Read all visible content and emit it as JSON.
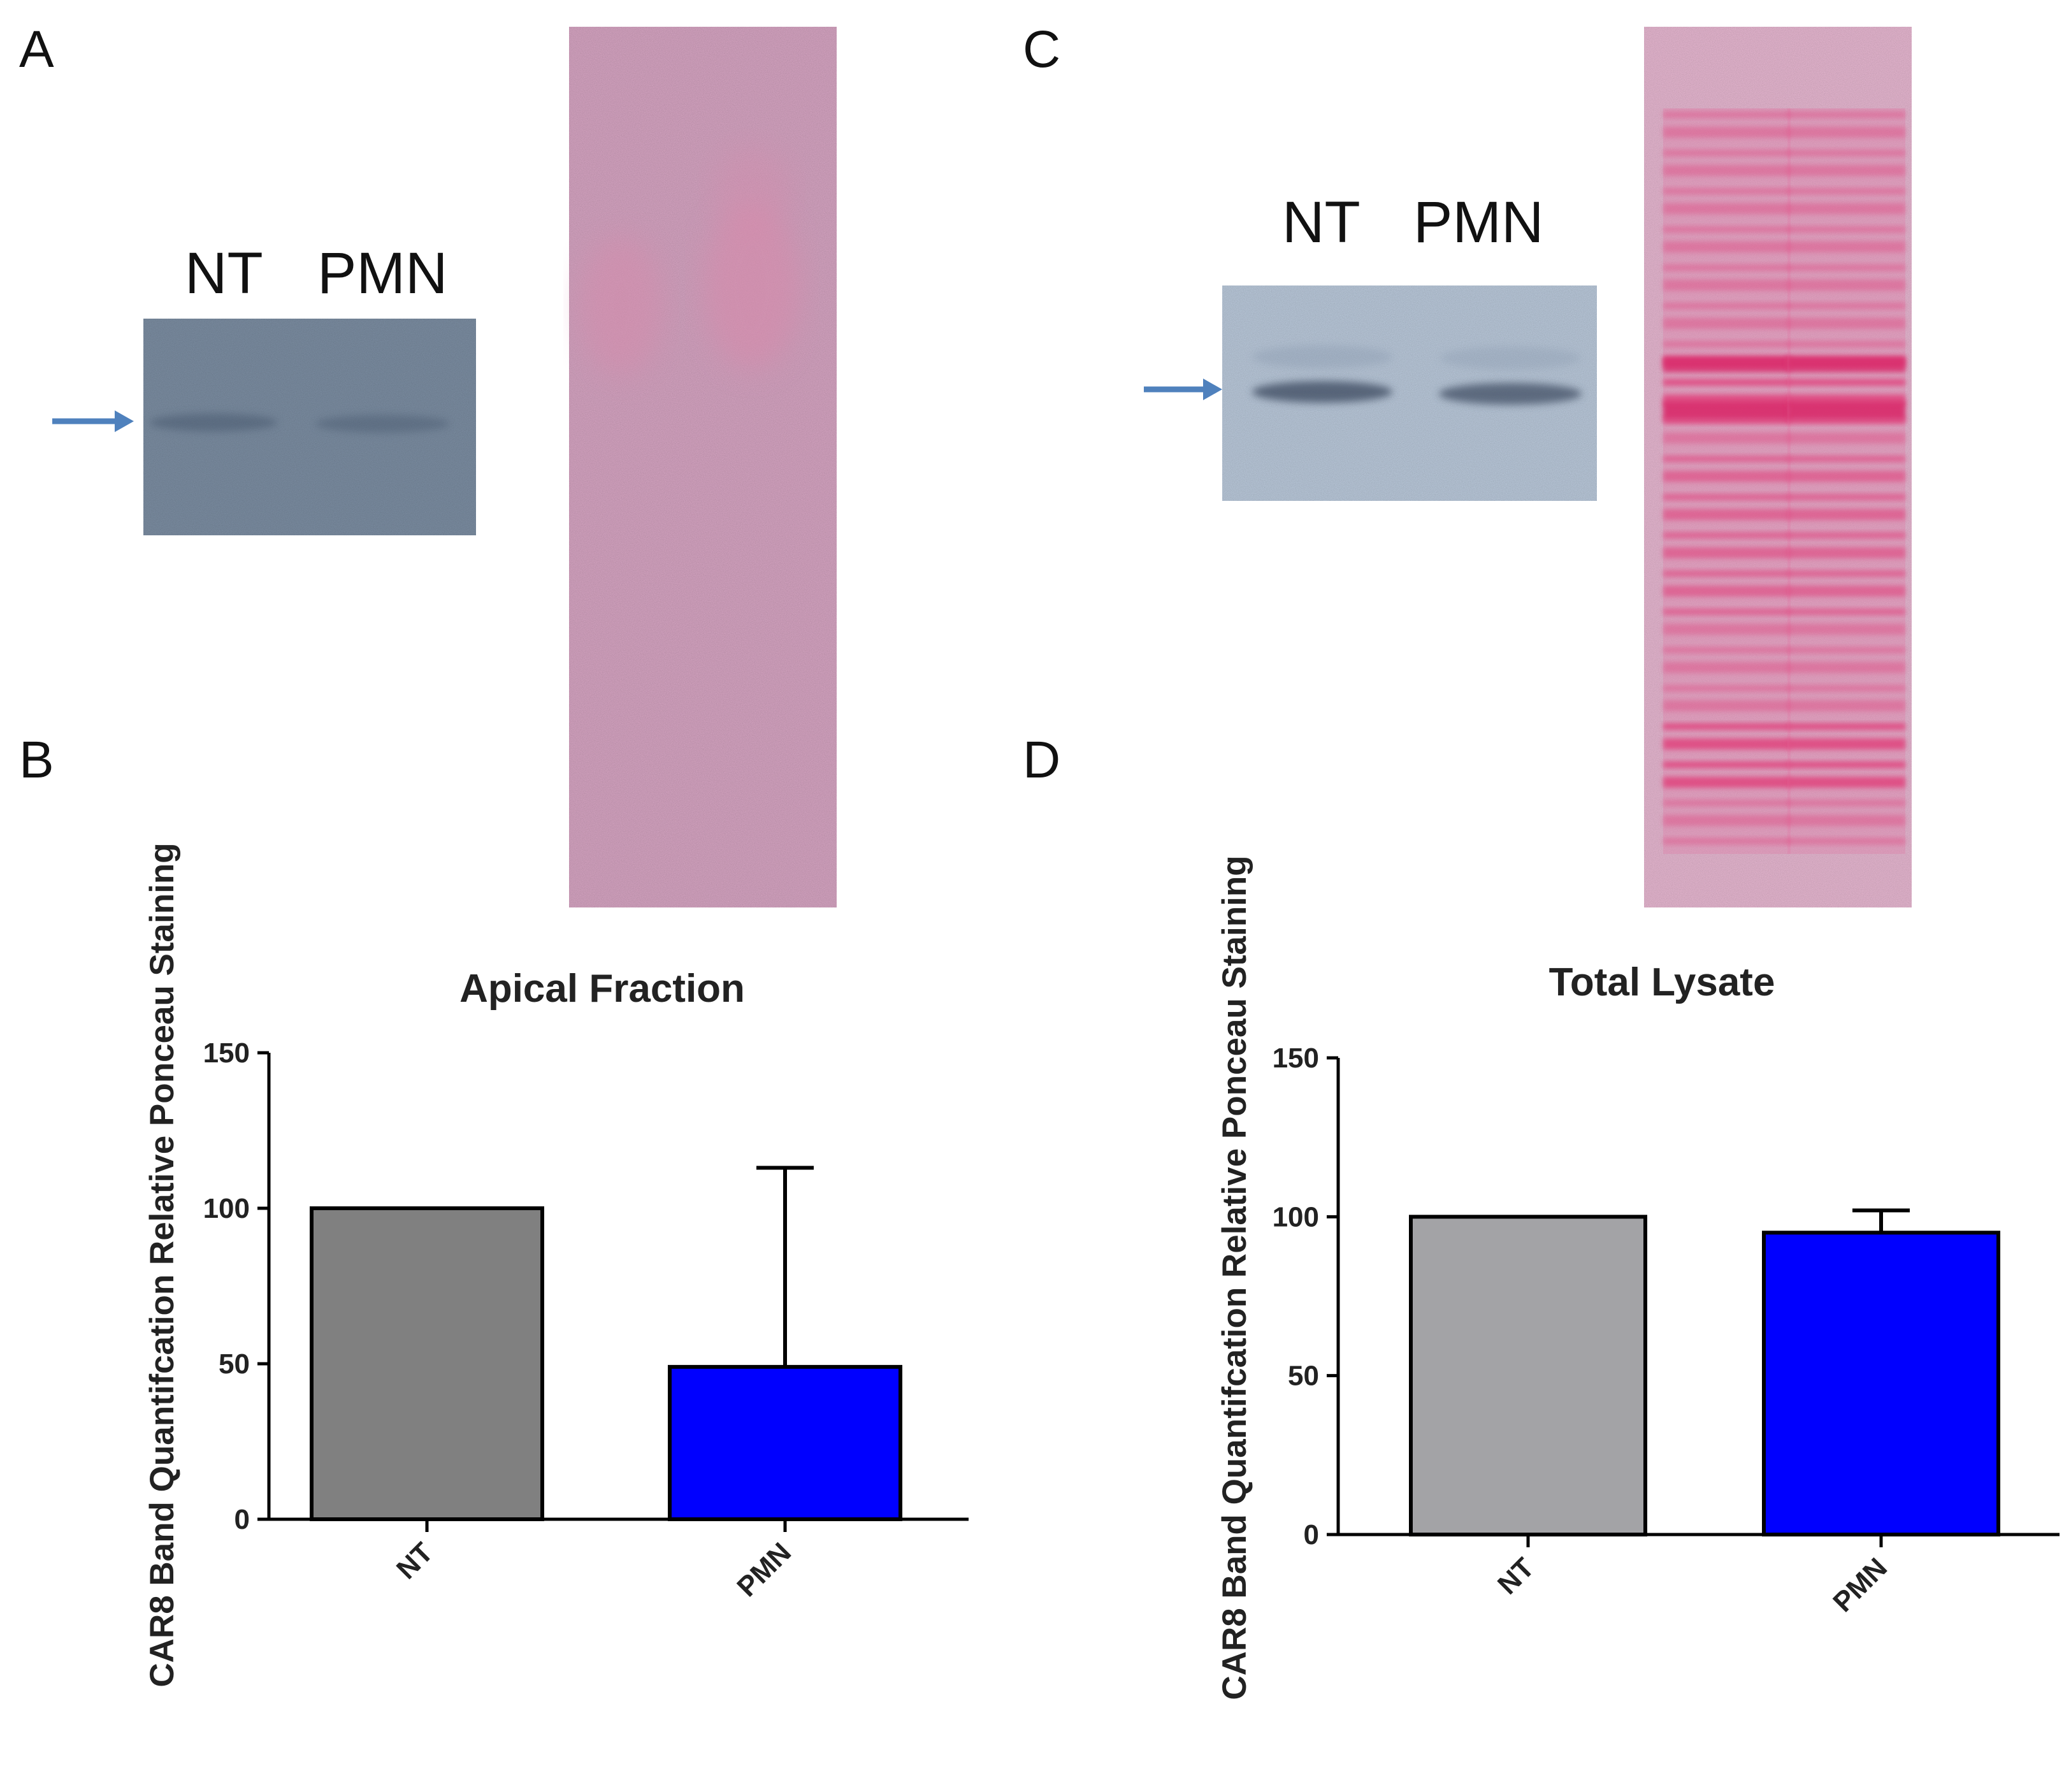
{
  "panels": {
    "a": {
      "letter": "A",
      "lanes": [
        "NT",
        "PMN"
      ]
    },
    "b": {
      "letter": "B"
    },
    "c": {
      "letter": "C",
      "lanes": [
        "NT",
        "PMN"
      ]
    },
    "d": {
      "letter": "D"
    }
  },
  "colors": {
    "arrow": "#4f81bd",
    "blot_a": "#7d8fa4",
    "blot_c": "#bccbdd",
    "ponceau_light": "#d8a6c4",
    "ponceau_bands": "#e0457e",
    "bar_nt_b": "#808080",
    "bar_nt_d": "#a3a3a6",
    "bar_pmn": "#0000ff"
  },
  "chart_data": [
    {
      "type": "bar",
      "title": "Apical Fraction",
      "ylabel": "CAR8 Band Quantifcation Relative Ponceau Staining",
      "xlabel": "",
      "categories": [
        "NT",
        "PMN"
      ],
      "values": [
        100,
        49
      ],
      "error_plus": [
        0,
        64
      ],
      "ylim": [
        0,
        150
      ],
      "yticks": [
        0,
        50,
        100,
        150
      ],
      "bar_colors": [
        "#808080",
        "#0000ff"
      ]
    },
    {
      "type": "bar",
      "title": "Total Lysate",
      "ylabel": "CAR8 Band Quantifcation Relative Ponceau Staining",
      "xlabel": "",
      "categories": [
        "NT",
        "PMN"
      ],
      "values": [
        100,
        95
      ],
      "error_plus": [
        0,
        7
      ],
      "ylim": [
        0,
        150
      ],
      "yticks": [
        0,
        50,
        100,
        150
      ],
      "bar_colors": [
        "#a3a3a6",
        "#0000ff"
      ]
    }
  ]
}
